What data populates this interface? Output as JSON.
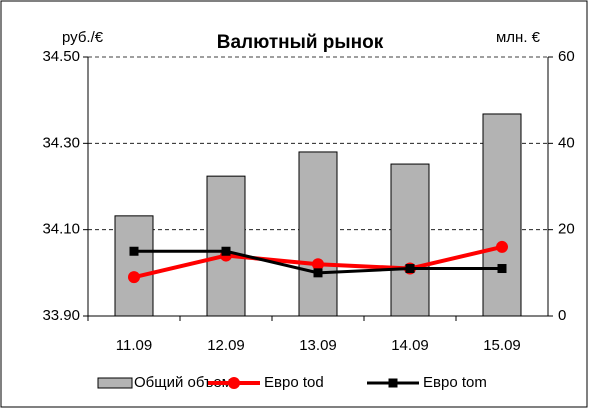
{
  "chart_data": {
    "type": "combo",
    "title": "Валютный рынок",
    "y_label": "руб./€",
    "y2_label": "млн. €",
    "categories": [
      "11.09",
      "12.09",
      "13.09",
      "14.09",
      "15.09"
    ],
    "series": [
      {
        "name": "Общий объем",
        "type": "bar",
        "axis": "y2",
        "color": "#b3b3b3",
        "values": [
          23.2,
          32.4,
          38,
          35.2,
          46.8
        ]
      },
      {
        "name": "Евро tod",
        "type": "line",
        "color": "#ff0000",
        "values": [
          33.99,
          34.04,
          34.02,
          34.01,
          34.06
        ]
      },
      {
        "name": "Евро tom",
        "type": "line",
        "color": "#000000",
        "values": [
          34.05,
          34.05,
          34.0,
          34.01,
          34.01
        ]
      }
    ],
    "ylim": [
      33.9,
      34.5
    ],
    "yticks": [
      {
        "value": 33.9,
        "label": "33.90"
      },
      {
        "value": 34.1,
        "label": "34.10"
      },
      {
        "value": 34.3,
        "label": "34.30"
      },
      {
        "value": 34.5,
        "label": "34.50"
      }
    ],
    "y2lim": [
      0,
      60
    ],
    "y2ticks": [
      0,
      20,
      40,
      60
    ],
    "grid": true
  }
}
